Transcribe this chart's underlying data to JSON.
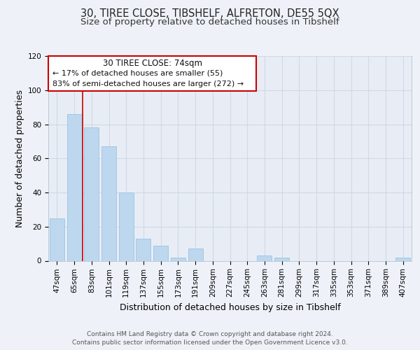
{
  "title": "30, TIREE CLOSE, TIBSHELF, ALFRETON, DE55 5QX",
  "subtitle": "Size of property relative to detached houses in Tibshelf",
  "xlabel": "Distribution of detached houses by size in Tibshelf",
  "ylabel": "Number of detached properties",
  "categories": [
    "47sqm",
    "65sqm",
    "83sqm",
    "101sqm",
    "119sqm",
    "137sqm",
    "155sqm",
    "173sqm",
    "191sqm",
    "209sqm",
    "227sqm",
    "245sqm",
    "263sqm",
    "281sqm",
    "299sqm",
    "317sqm",
    "335sqm",
    "353sqm",
    "371sqm",
    "389sqm",
    "407sqm"
  ],
  "values": [
    25,
    86,
    78,
    67,
    40,
    13,
    9,
    2,
    7,
    0,
    0,
    0,
    3,
    2,
    0,
    0,
    0,
    0,
    0,
    0,
    2
  ],
  "bar_color": "#bdd7ee",
  "bar_edge_color": "#9dc3e6",
  "vline_color": "#cc0000",
  "ylim": [
    0,
    120
  ],
  "yticks": [
    0,
    20,
    40,
    60,
    80,
    100,
    120
  ],
  "annotation_title": "30 TIREE CLOSE: 74sqm",
  "annotation_line1": "← 17% of detached houses are smaller (55)",
  "annotation_line2": "83% of semi-detached houses are larger (272) →",
  "annotation_box_color": "#ffffff",
  "annotation_box_edge_color": "#cc0000",
  "footer_line1": "Contains HM Land Registry data © Crown copyright and database right 2024.",
  "footer_line2": "Contains public sector information licensed under the Open Government Licence v3.0.",
  "background_color": "#eef2f8",
  "plot_bg_color": "#e8edf5",
  "grid_color": "#d0d8e8",
  "title_fontsize": 10.5,
  "subtitle_fontsize": 9.5,
  "axis_label_fontsize": 9,
  "tick_fontsize": 7.5,
  "footer_fontsize": 6.5,
  "annotation_title_fontsize": 8.5,
  "annotation_text_fontsize": 8
}
